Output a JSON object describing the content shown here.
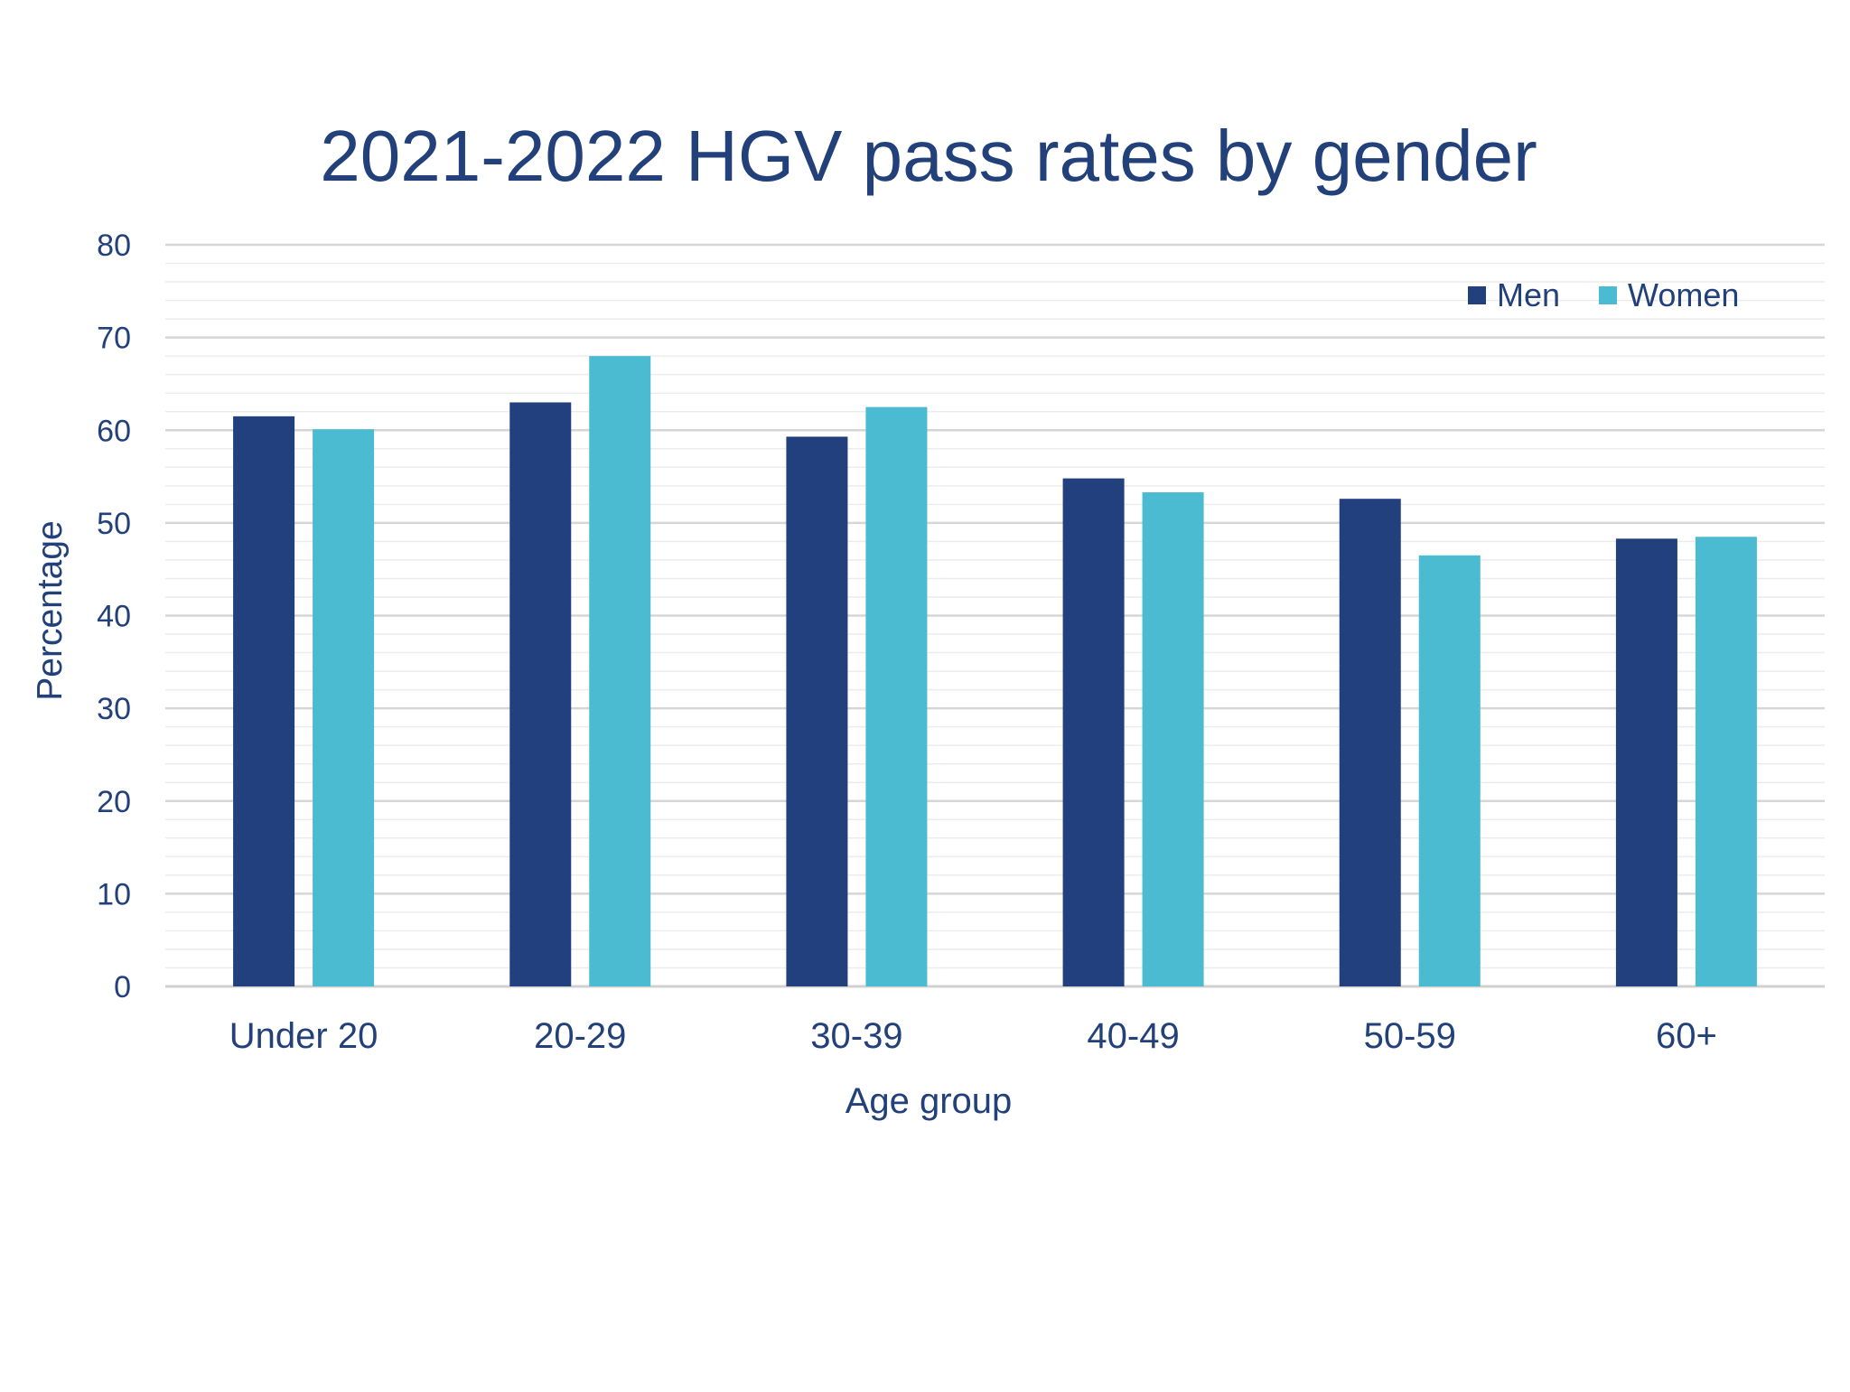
{
  "chart_data": {
    "type": "bar",
    "title": "2021-2022 HGV pass rates by gender",
    "xlabel": "Age group",
    "ylabel": "Percentage",
    "categories": [
      "Under 20",
      "20-29",
      "30-39",
      "40-49",
      "50-59",
      "60+"
    ],
    "series": [
      {
        "name": "Men",
        "color": "#223f7e",
        "values": [
          61.5,
          63.0,
          59.3,
          54.8,
          52.6,
          48.3
        ]
      },
      {
        "name": "Women",
        "color": "#4bbbd1",
        "values": [
          60.1,
          68.0,
          62.5,
          53.3,
          46.5,
          48.5
        ]
      }
    ],
    "ylim": [
      0,
      80
    ],
    "yticks": [
      0,
      10,
      20,
      30,
      40,
      50,
      60,
      70,
      80
    ],
    "grid": true,
    "legend_position": "top-right",
    "colors": {
      "text": "#22407a",
      "grid_major": "#d6d6d6",
      "grid_minor": "#ececec",
      "axis": "#d0d0d0"
    }
  }
}
